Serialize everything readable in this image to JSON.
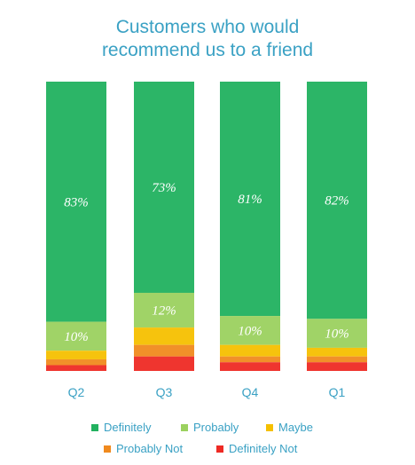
{
  "chart_data": {
    "type": "bar",
    "stacked": true,
    "title": [
      "Customers who would",
      "recommend us to a friend"
    ],
    "categories": [
      "Q2",
      "Q3",
      "Q4",
      "Q1"
    ],
    "series": [
      {
        "name": "Definitely",
        "color": "#21b15f",
        "values": [
          83,
          73,
          81,
          82
        ]
      },
      {
        "name": "Probably",
        "color": "#9bd15f",
        "values": [
          10,
          12,
          10,
          10
        ]
      },
      {
        "name": "Maybe",
        "color": "#f5c000",
        "values": [
          3,
          6,
          4,
          3
        ]
      },
      {
        "name": "Probably Not",
        "color": "#f08a1e",
        "values": [
          2,
          4,
          2,
          2
        ]
      },
      {
        "name": "Definitely Not",
        "color": "#ee2a24",
        "values": [
          2,
          5,
          3,
          3
        ]
      }
    ],
    "data_labels": [
      [
        "83%",
        "73%",
        "81%",
        "82%"
      ],
      [
        "10%",
        "12%",
        "10%",
        "10%"
      ]
    ],
    "ylim": [
      0,
      100
    ],
    "grid": false,
    "legend_position": "bottom"
  }
}
